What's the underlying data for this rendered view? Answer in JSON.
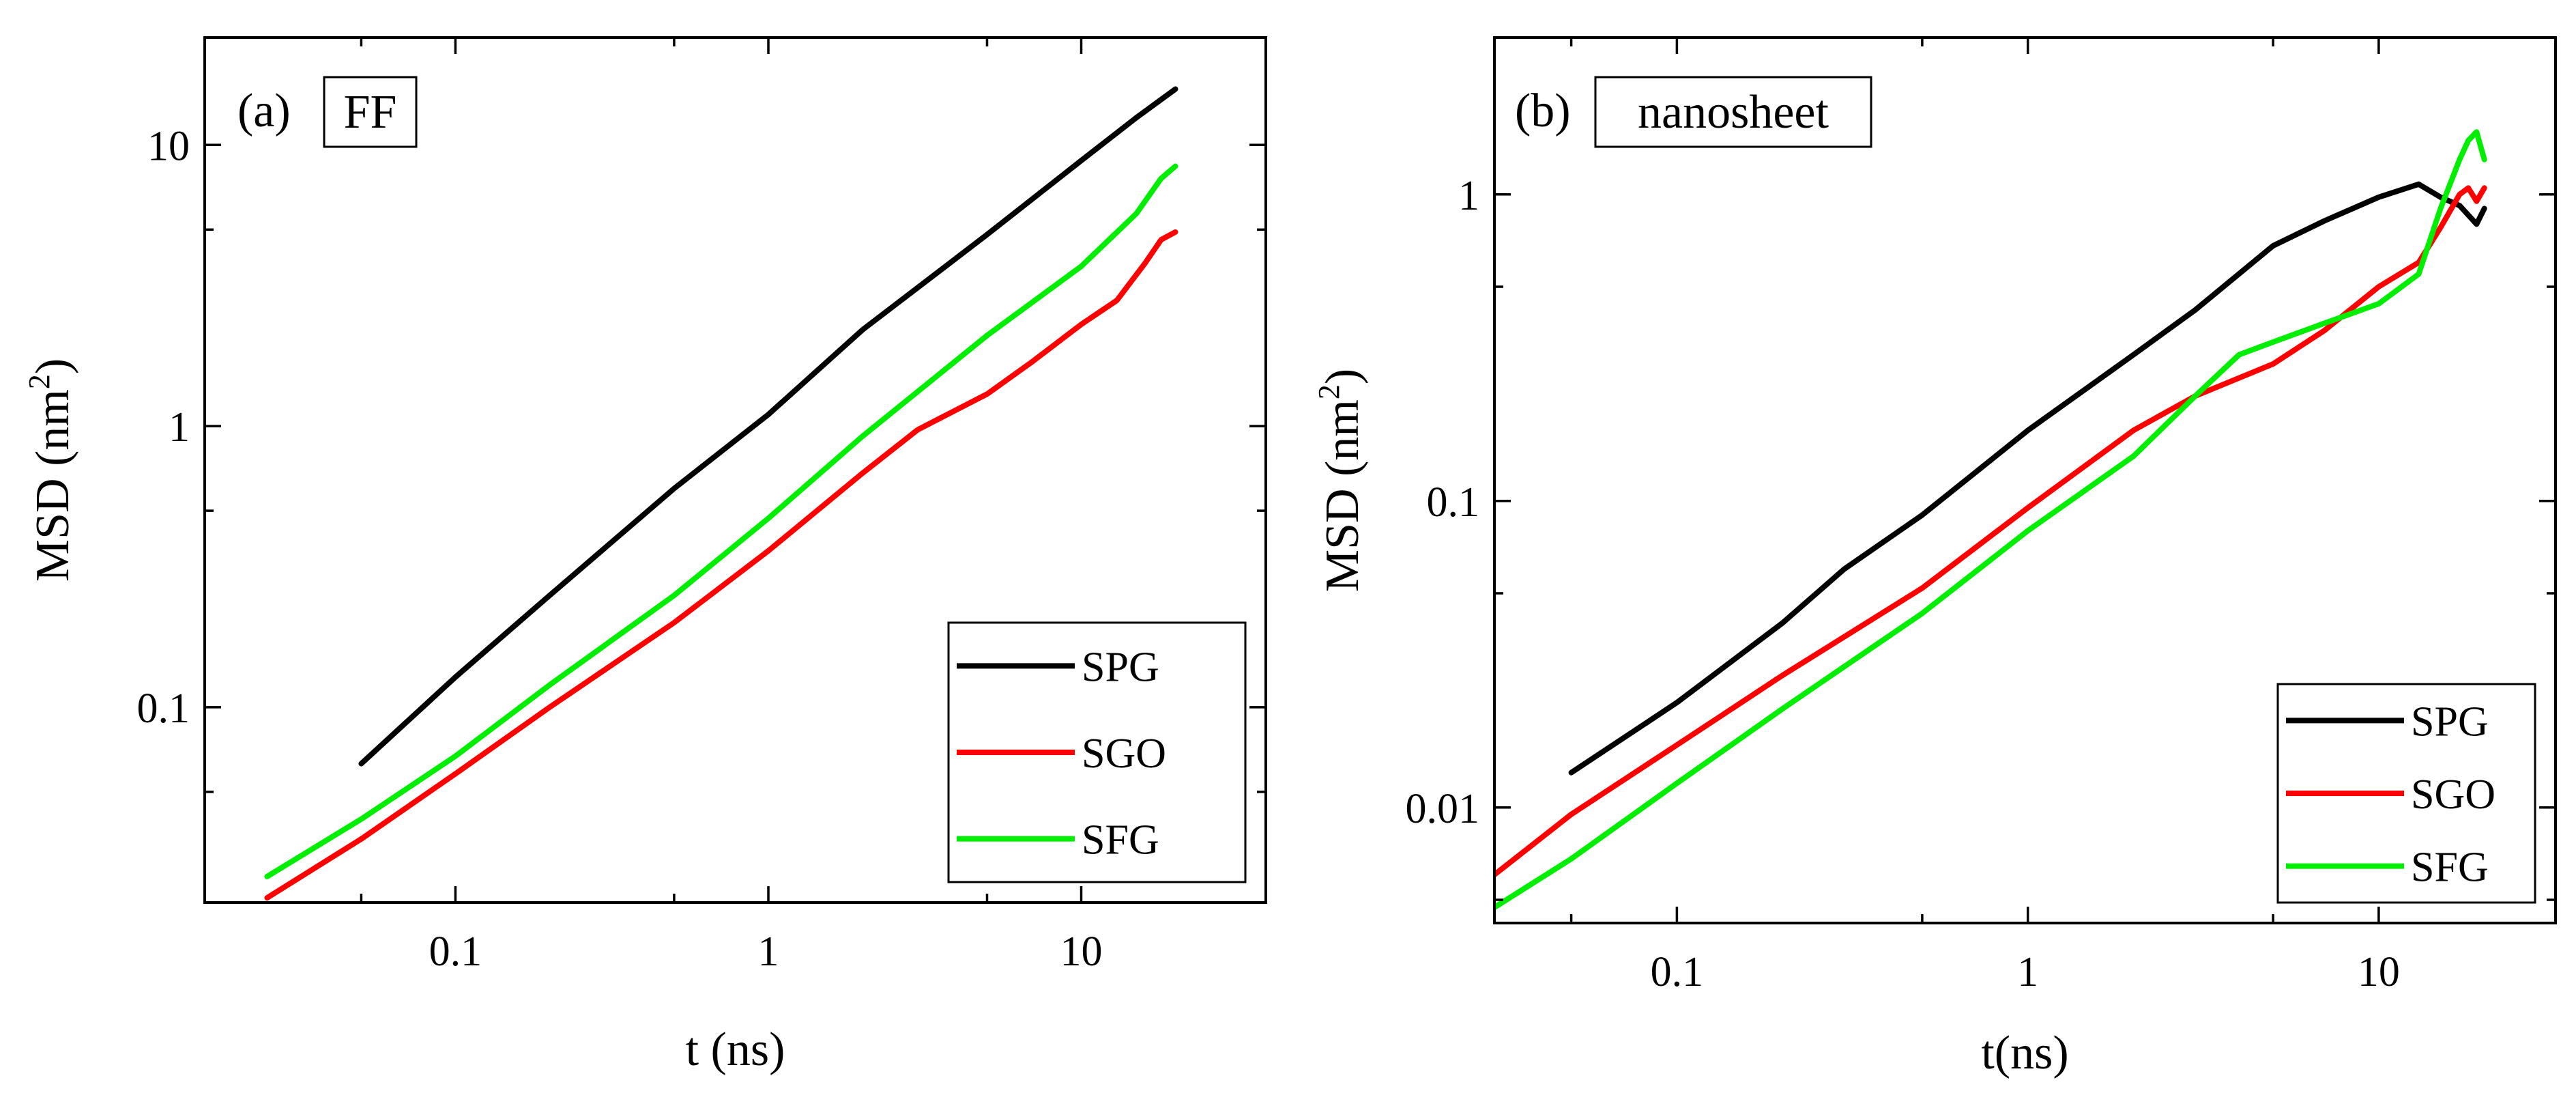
{
  "chart_data": [
    {
      "type": "line",
      "panel_letter": "(a)",
      "label_box": "FF",
      "xlabel": "t (ns)",
      "ylabel_main": "MSD (nm",
      "ylabel_sup": "2",
      "ylabel_close": ")",
      "x_scale": "log",
      "y_scale": "log",
      "xlim": [
        0.0158,
        38.9
      ],
      "ylim": [
        0.0202,
        24.1
      ],
      "xticks": [
        {
          "v": 0.1,
          "label": "0.1"
        },
        {
          "v": 1,
          "label": "1"
        },
        {
          "v": 10,
          "label": "10"
        }
      ],
      "yticks": [
        {
          "v": 0.1,
          "label": "0.1"
        },
        {
          "v": 1,
          "label": "1"
        },
        {
          "v": 10,
          "label": "10"
        }
      ],
      "grid": false,
      "legend_position": "bottom-right",
      "colors": {
        "SPG": "#000000",
        "SGO": "#ff0000",
        "SFG": "#00ee00"
      },
      "series": [
        {
          "name": "SPG",
          "x": [
            0.05,
            0.1,
            0.2,
            0.5,
            1,
            2,
            5,
            10,
            15,
            20
          ],
          "y": [
            0.063,
            0.128,
            0.25,
            0.6,
            1.1,
            2.2,
            4.8,
            8.8,
            12.5,
            15.8
          ]
        },
        {
          "name": "SGO",
          "x": [
            0.025,
            0.05,
            0.1,
            0.2,
            0.5,
            1,
            2,
            3,
            5,
            7,
            10,
            13,
            16,
            18,
            20
          ],
          "y": [
            0.021,
            0.034,
            0.058,
            0.1,
            0.2,
            0.36,
            0.68,
            0.97,
            1.3,
            1.7,
            2.3,
            2.8,
            3.8,
            4.6,
            4.9
          ]
        },
        {
          "name": "SFG",
          "x": [
            0.025,
            0.05,
            0.1,
            0.2,
            0.5,
            1,
            2,
            5,
            10,
            15,
            18,
            20
          ],
          "y": [
            0.025,
            0.04,
            0.067,
            0.12,
            0.25,
            0.47,
            0.92,
            2.1,
            3.7,
            5.7,
            7.6,
            8.4
          ]
        }
      ]
    },
    {
      "type": "line",
      "panel_letter": "(b)",
      "label_box": "nanosheet",
      "xlabel": "t(ns)",
      "ylabel_main": "MSD (nm",
      "ylabel_sup": "2",
      "ylabel_close": ")",
      "x_scale": "log",
      "y_scale": "log",
      "xlim": [
        0.0302,
        31.9
      ],
      "ylim": [
        0.0042,
        3.25
      ],
      "xticks": [
        {
          "v": 0.1,
          "label": "0.1"
        },
        {
          "v": 1,
          "label": "1"
        },
        {
          "v": 10,
          "label": "10"
        }
      ],
      "yticks": [
        {
          "v": 0.01,
          "label": "0.01"
        },
        {
          "v": 0.1,
          "label": "0.1"
        },
        {
          "v": 1,
          "label": "1"
        }
      ],
      "grid": false,
      "legend_position": "bottom-right",
      "colors": {
        "SPG": "#000000",
        "SGO": "#ff0000",
        "SFG": "#00ee00"
      },
      "series": [
        {
          "name": "SPG",
          "x": [
            0.05,
            0.1,
            0.2,
            0.3,
            0.5,
            1,
            2,
            3,
            5,
            7,
            10,
            13,
            15,
            17,
            19,
            20
          ],
          "y": [
            0.013,
            0.022,
            0.04,
            0.06,
            0.09,
            0.17,
            0.3,
            0.42,
            0.68,
            0.82,
            0.98,
            1.08,
            0.98,
            0.92,
            0.8,
            0.9
          ]
        },
        {
          "name": "SGO",
          "x": [
            0.03,
            0.05,
            0.1,
            0.2,
            0.5,
            1,
            2,
            3,
            5,
            7,
            10,
            13,
            15,
            17,
            18,
            19,
            20
          ],
          "y": [
            0.006,
            0.0095,
            0.016,
            0.027,
            0.052,
            0.095,
            0.17,
            0.22,
            0.28,
            0.36,
            0.5,
            0.6,
            0.78,
            1.0,
            1.05,
            0.95,
            1.05
          ]
        },
        {
          "name": "SFG",
          "x": [
            0.03,
            0.05,
            0.1,
            0.2,
            0.5,
            1,
            2,
            3,
            4,
            5,
            7,
            10,
            13,
            15,
            17,
            18,
            19,
            20
          ],
          "y": [
            0.0047,
            0.0068,
            0.012,
            0.021,
            0.043,
            0.08,
            0.14,
            0.22,
            0.3,
            0.33,
            0.38,
            0.44,
            0.55,
            0.9,
            1.3,
            1.5,
            1.6,
            1.3
          ]
        }
      ]
    }
  ]
}
